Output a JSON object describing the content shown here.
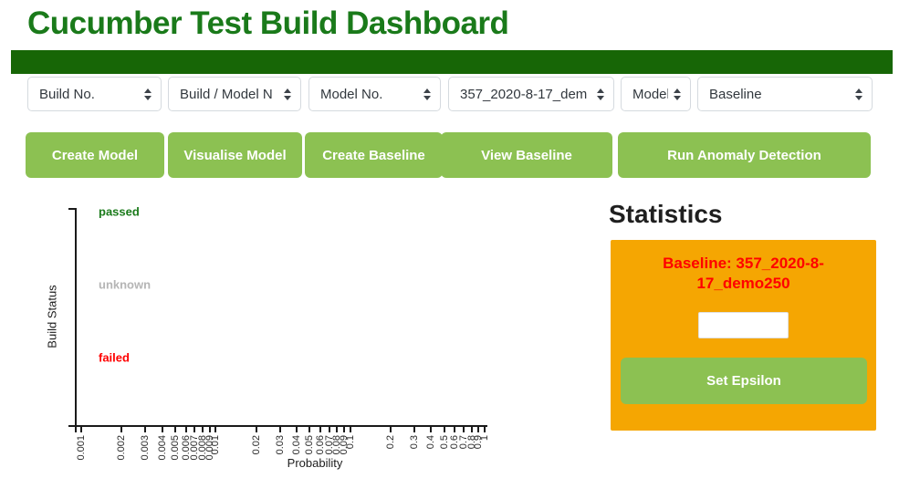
{
  "page_title": "Cucumber Test Build Dashboard",
  "colors": {
    "title_green": "#1a7a1a",
    "bar_green": "#176606",
    "button_green": "#8cc152",
    "panel_orange": "#f5a602",
    "baseline_red": "#ff0000",
    "unknown_gray": "#b5b5b5",
    "axis_black": "#1a1a1a"
  },
  "filters": [
    {
      "name": "build-no",
      "value": "Build No."
    },
    {
      "name": "build-model-name",
      "value": "Build / Model N"
    },
    {
      "name": "model-no",
      "value": "Model No."
    },
    {
      "name": "model-select",
      "value": "357_2020-8-17_dem"
    },
    {
      "name": "model-id",
      "value": "Model I"
    },
    {
      "name": "baseline",
      "value": "Baseline"
    }
  ],
  "actions": [
    {
      "label": "Create Model"
    },
    {
      "label": "Visualise Model"
    },
    {
      "label": "Create Baseline"
    },
    {
      "label": "View Baseline"
    },
    {
      "label": "Run Anomaly Detection"
    }
  ],
  "statistics": {
    "heading": "Statistics",
    "baseline_label": "Baseline: 357_2020-8-17_demo250",
    "epsilon_input_value": "",
    "set_epsilon_label": "Set Epsilon"
  },
  "chart_data": {
    "type": "scatter",
    "title": "",
    "xlabel": "Probability",
    "ylabel": "Build Status",
    "x_scale": "log",
    "xlim": [
      0.001,
      1
    ],
    "x_ticks": [
      "0.001",
      "0.002",
      "0.003",
      "0.004",
      "0.005",
      "0.006",
      "0.007",
      "0.008",
      "0.009",
      "0.01",
      "0.02",
      "0.03",
      "0.04",
      "0.05",
      "0.06",
      "0.07",
      "0.08",
      "0.09",
      "0.1",
      "0.2",
      "0.3",
      "0.4",
      "0.5",
      "0.6",
      "0.7",
      "0.8",
      "0.9",
      "1"
    ],
    "y_categories": [
      {
        "label": "passed",
        "color": "#1a7a1a"
      },
      {
        "label": "unknown",
        "color": "#b5b5b5"
      },
      {
        "label": "failed",
        "color": "#ff0000"
      }
    ],
    "series": [],
    "grid": false,
    "legend": false
  }
}
